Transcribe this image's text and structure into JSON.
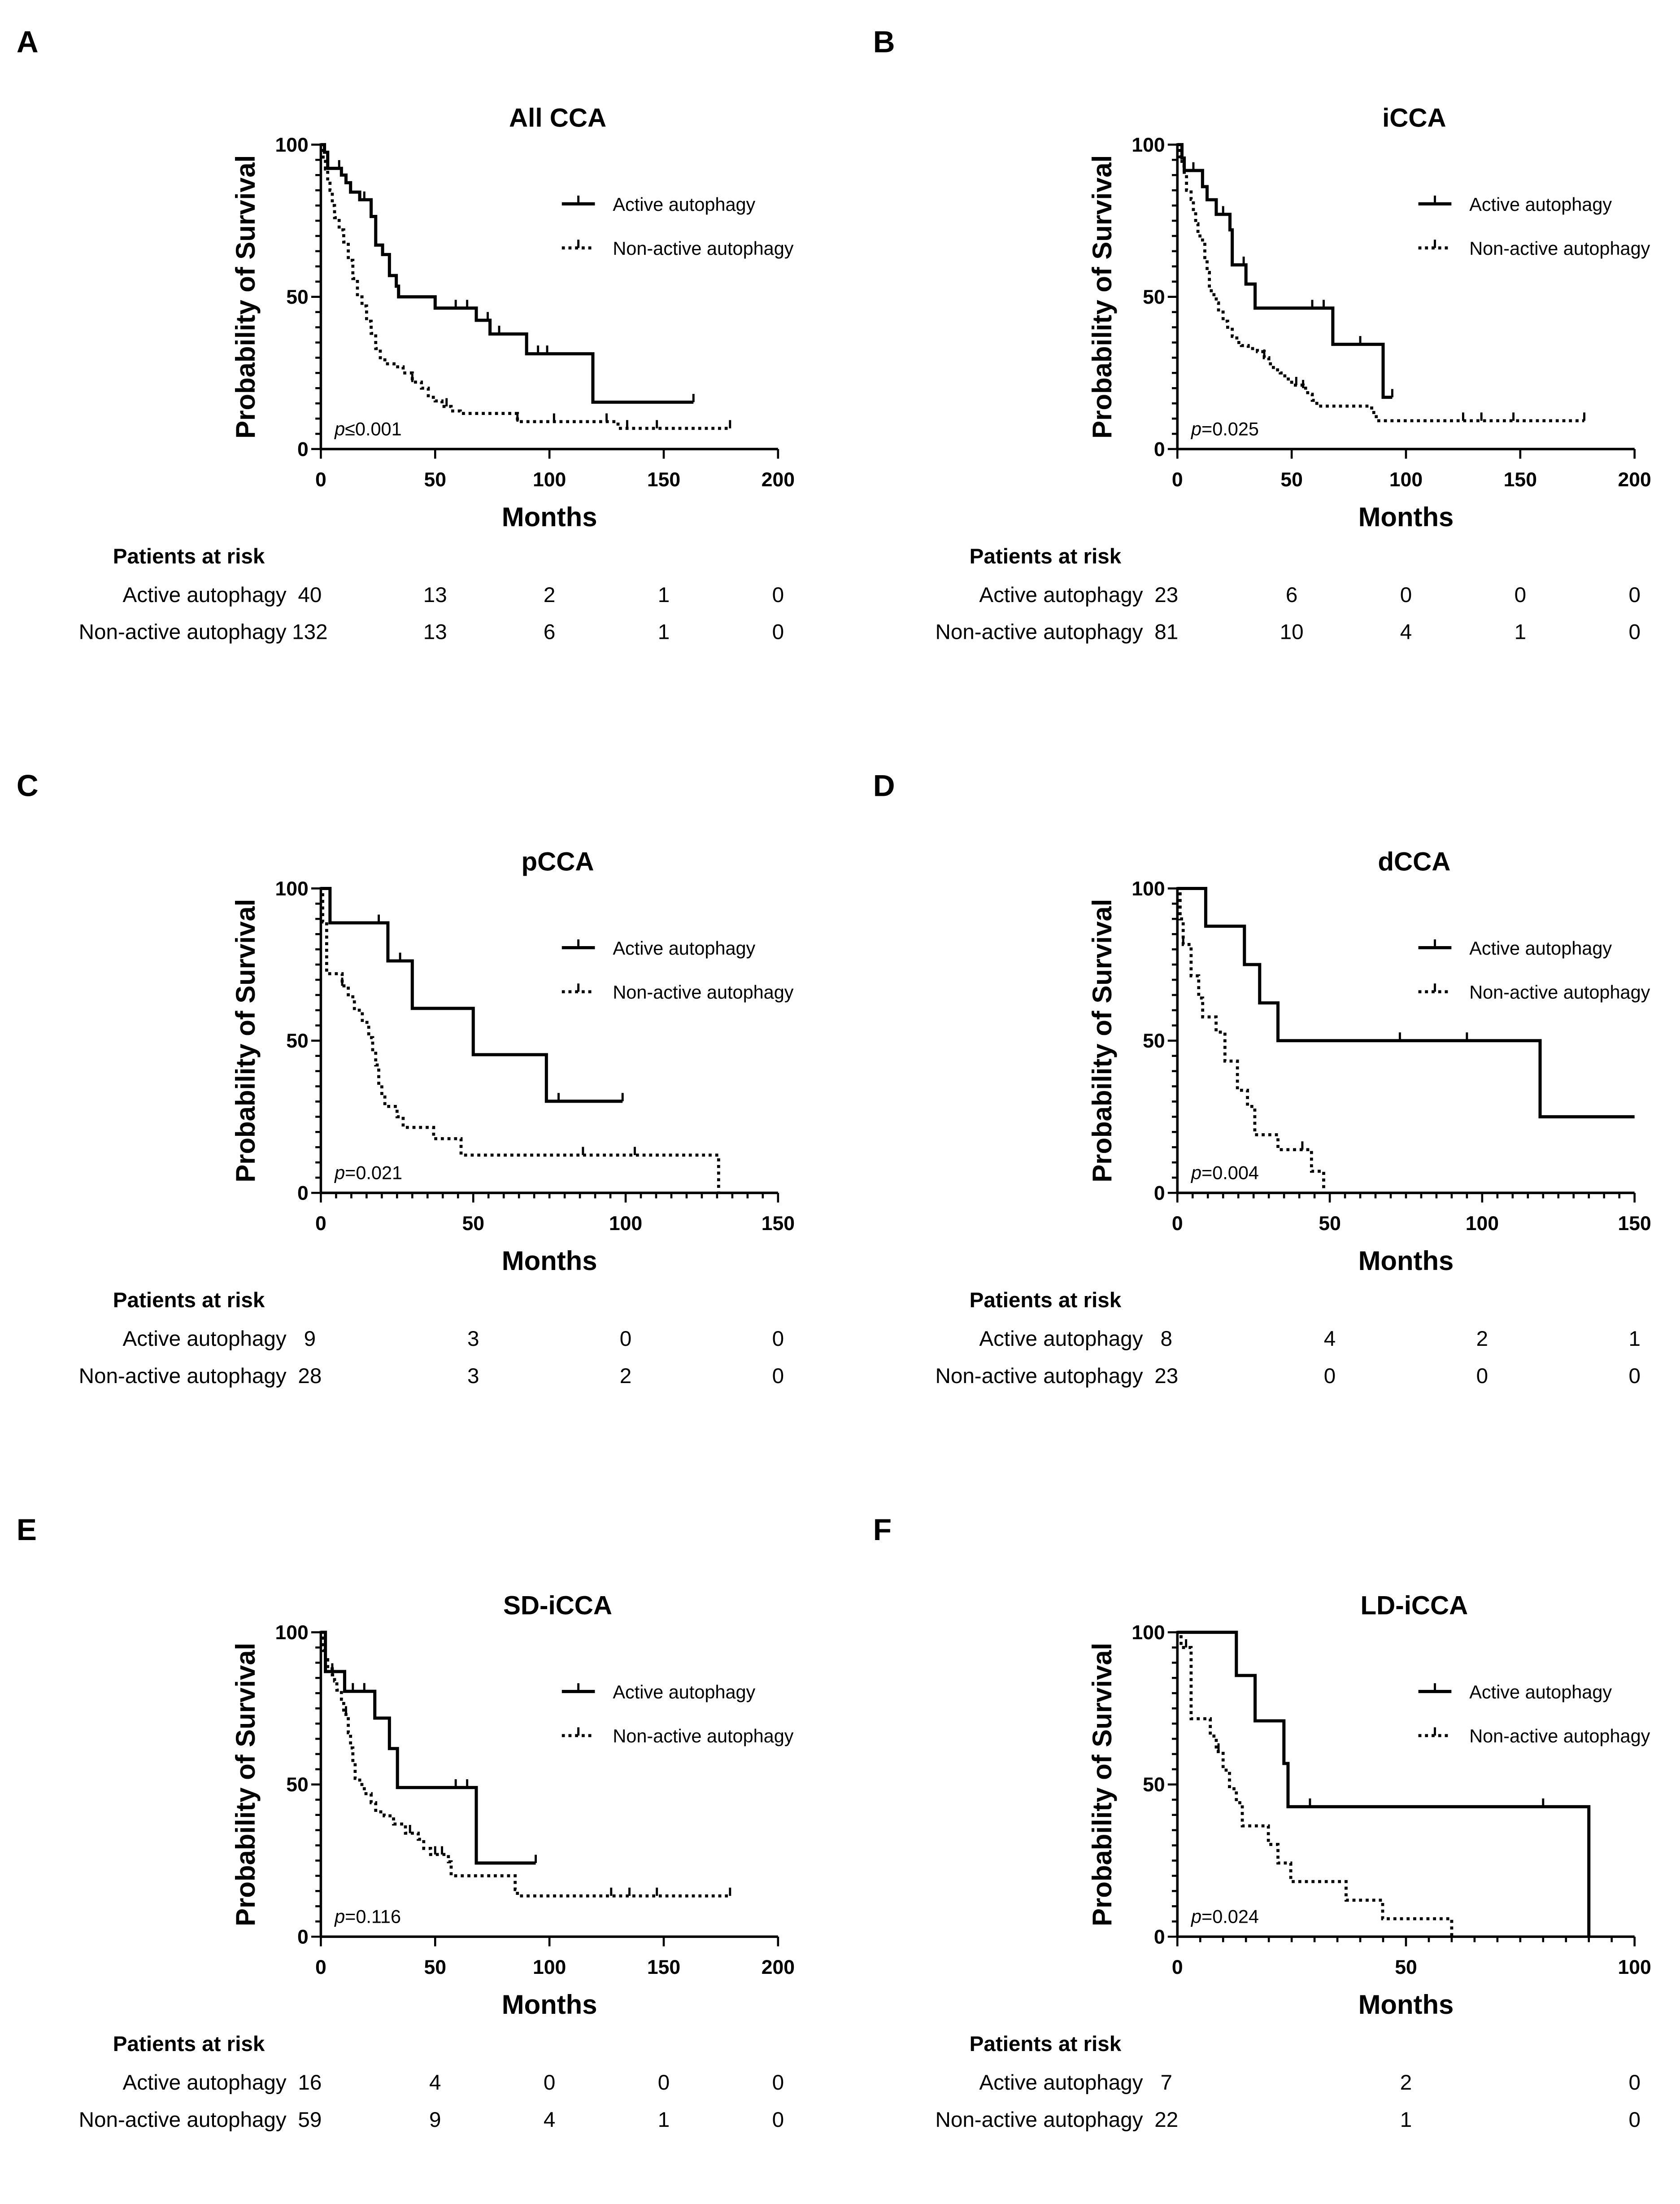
{
  "y_label": "Probability of Survival",
  "x_label": "Months",
  "risk_header": "Patients at risk",
  "legend": {
    "active": "Active autophagy",
    "nonactive": "Non-active autophagy"
  },
  "colors": {
    "line": "#000000"
  },
  "chart_data": [
    {
      "letter": "A",
      "title": "All CCA",
      "type": "line",
      "p_prefix": "p",
      "p_text": "≤0.001",
      "xlim": [
        0,
        200
      ],
      "xticks": [
        0,
        50,
        100,
        150,
        200
      ],
      "x_minor": 0,
      "ylim": [
        0,
        100
      ],
      "yticks": [
        0,
        50,
        100
      ],
      "series": [
        {
          "name": "Active autophagy",
          "style": "solid",
          "steps": [
            [
              1.6,
              97.5
            ],
            [
              3,
              92.2
            ],
            [
              9,
              90
            ],
            [
              11,
              87.5
            ],
            [
              13,
              84.4
            ],
            [
              17,
              81.9
            ],
            [
              22,
              76.4
            ],
            [
              24,
              67
            ],
            [
              27,
              63.9
            ],
            [
              30,
              57
            ],
            [
              33,
              53.5
            ],
            [
              34,
              50
            ],
            [
              50,
              46.3
            ],
            [
              68,
              42.3
            ],
            [
              74,
              37.8
            ],
            [
              90,
              31.3
            ],
            [
              119,
              15.4
            ]
          ],
          "end": 163,
          "censored": [
            8,
            19,
            59,
            64,
            73,
            78,
            95,
            99,
            163
          ]
        },
        {
          "name": "Non-active autophagy",
          "style": "dotted",
          "steps": [
            [
              1,
              95
            ],
            [
              2,
              92
            ],
            [
              3,
              88
            ],
            [
              4,
              85
            ],
            [
              5,
              80
            ],
            [
              6,
              76
            ],
            [
              8,
              72
            ],
            [
              10,
              68
            ],
            [
              12,
              62
            ],
            [
              14,
              56
            ],
            [
              16,
              50
            ],
            [
              18,
              47
            ],
            [
              20,
              42
            ],
            [
              22,
              38
            ],
            [
              24,
              33
            ],
            [
              26,
              30
            ],
            [
              28,
              28
            ],
            [
              32,
              27
            ],
            [
              36,
              25
            ],
            [
              40,
              22
            ],
            [
              44,
              20
            ],
            [
              47,
              17
            ],
            [
              50,
              15.8
            ],
            [
              53,
              14
            ],
            [
              57,
              12.5
            ],
            [
              61,
              11.7
            ],
            [
              86,
              9
            ],
            [
              130,
              6.8
            ]
          ],
          "end": 179,
          "censored": [
            40,
            55,
            86,
            102,
            125,
            134,
            147,
            179
          ]
        }
      ],
      "at_risk": {
        "times": [
          0,
          50,
          100,
          150,
          200
        ],
        "active": [
          40,
          13,
          2,
          1,
          0
        ],
        "nonactive": [
          132,
          13,
          6,
          1,
          0
        ]
      }
    },
    {
      "letter": "B",
      "title": "iCCA",
      "type": "line",
      "p_prefix": "p",
      "p_text": "=0.025",
      "xlim": [
        0,
        200
      ],
      "xticks": [
        0,
        50,
        100,
        150,
        200
      ],
      "x_minor": 0,
      "ylim": [
        0,
        100
      ],
      "yticks": [
        0,
        50,
        100
      ],
      "series": [
        {
          "name": "Active autophagy",
          "style": "solid",
          "steps": [
            [
              2,
              95.6
            ],
            [
              3,
              91.5
            ],
            [
              11,
              86.2
            ],
            [
              13,
              81.9
            ],
            [
              17,
              77.1
            ],
            [
              23,
              72
            ],
            [
              24,
              60.5
            ],
            [
              30,
              54.2
            ],
            [
              34,
              46.3
            ],
            [
              68,
              34.4
            ],
            [
              90,
              17
            ]
          ],
          "end": 94,
          "censored": [
            7,
            20,
            29,
            59,
            64,
            80,
            94
          ]
        },
        {
          "name": "Non-active autophagy",
          "style": "dotted",
          "steps": [
            [
              1,
              96
            ],
            [
              2,
              93
            ],
            [
              3,
              90
            ],
            [
              4,
              85
            ],
            [
              6,
              82
            ],
            [
              7,
              78
            ],
            [
              8,
              74
            ],
            [
              9,
              70
            ],
            [
              11,
              68
            ],
            [
              12,
              62
            ],
            [
              13,
              58
            ],
            [
              14,
              52
            ],
            [
              16,
              50
            ],
            [
              17,
              48
            ],
            [
              18,
              45
            ],
            [
              20,
              42
            ],
            [
              22,
              40
            ],
            [
              24,
              37
            ],
            [
              26,
              35
            ],
            [
              28,
              34
            ],
            [
              31,
              33
            ],
            [
              35,
              32
            ],
            [
              38,
              30
            ],
            [
              40,
              28
            ],
            [
              42,
              26
            ],
            [
              45,
              25
            ],
            [
              47,
              23
            ],
            [
              50,
              21
            ],
            [
              55,
              20
            ],
            [
              57,
              18
            ],
            [
              59,
              16
            ],
            [
              61,
              14.1
            ],
            [
              85,
              12
            ],
            [
              87,
              9.3
            ]
          ],
          "end": 178,
          "censored": [
            38,
            52,
            55,
            125,
            133,
            147,
            178
          ]
        }
      ],
      "at_risk": {
        "times": [
          0,
          50,
          100,
          150,
          200
        ],
        "active": [
          23,
          6,
          0,
          0,
          0
        ],
        "nonactive": [
          81,
          10,
          4,
          1,
          0
        ]
      }
    },
    {
      "letter": "C",
      "title": "pCCA",
      "type": "line",
      "p_prefix": "p",
      "p_text": "=0.021",
      "xlim": [
        0,
        150
      ],
      "xticks": [
        0,
        50,
        100,
        150
      ],
      "x_minor": 5,
      "ylim": [
        0,
        100
      ],
      "yticks": [
        0,
        50,
        100
      ],
      "series": [
        {
          "name": "Active autophagy",
          "style": "solid",
          "steps": [
            [
              3,
              88.7
            ],
            [
              22,
              76.2
            ],
            [
              30,
              60.6
            ],
            [
              50,
              45.4
            ],
            [
              74,
              30.1
            ]
          ],
          "end": 99,
          "censored": [
            19,
            26,
            78,
            99
          ]
        },
        {
          "name": "Non-active autophagy",
          "style": "dotted",
          "steps": [
            [
              0.6,
              89
            ],
            [
              1.9,
              72
            ],
            [
              7,
              68
            ],
            [
              9,
              64.4
            ],
            [
              11,
              60
            ],
            [
              13.6,
              56
            ],
            [
              15.7,
              51
            ],
            [
              17,
              46.4
            ],
            [
              18,
              42
            ],
            [
              19,
              36
            ],
            [
              20,
              32
            ],
            [
              21,
              28.4
            ],
            [
              25,
              25
            ],
            [
              27,
              21.5
            ],
            [
              37,
              17.8
            ],
            [
              46,
              12.4
            ],
            [
              130.5,
              0
            ]
          ],
          "end": 130.5,
          "censored": [
            7,
            86,
            103
          ]
        }
      ],
      "at_risk": {
        "times": [
          0,
          50,
          100,
          150
        ],
        "active": [
          9,
          3,
          0,
          0
        ],
        "nonactive": [
          28,
          3,
          2,
          0
        ]
      }
    },
    {
      "letter": "D",
      "title": "dCCA",
      "type": "line",
      "p_prefix": "p",
      "p_text": "=0.004",
      "xlim": [
        0,
        150
      ],
      "xticks": [
        0,
        50,
        100,
        150
      ],
      "x_minor": 5,
      "ylim": [
        0,
        100
      ],
      "yticks": [
        0,
        50,
        100
      ],
      "series": [
        {
          "name": "Active autophagy",
          "style": "solid",
          "steps": [
            [
              9.3,
              87.6
            ],
            [
              22,
              75
            ],
            [
              27,
              62.4
            ],
            [
              33,
              50
            ],
            [
              119,
              25
            ]
          ],
          "end": 150,
          "censored": [
            73,
            95
          ]
        },
        {
          "name": "Non-active autophagy",
          "style": "dotted",
          "steps": [
            [
              0.9,
              90
            ],
            [
              1.9,
              81.6
            ],
            [
              4.5,
              71.3
            ],
            [
              7,
              64
            ],
            [
              8.3,
              57.8
            ],
            [
              12.7,
              52.8
            ],
            [
              15.6,
              43.3
            ],
            [
              19.7,
              33.7
            ],
            [
              23,
              28.4
            ],
            [
              25.4,
              19.1
            ],
            [
              33,
              14.2
            ],
            [
              44,
              7.1
            ],
            [
              48,
              0
            ]
          ],
          "end": 48,
          "censored": [
            1.9,
            41
          ]
        }
      ],
      "at_risk": {
        "times": [
          0,
          50,
          100,
          150
        ],
        "active": [
          8,
          4,
          2,
          1
        ],
        "nonactive": [
          23,
          0,
          0,
          0
        ]
      }
    },
    {
      "letter": "E",
      "title": "SD-iCCA",
      "type": "line",
      "p_prefix": "p",
      "p_text": "=0.116",
      "xlim": [
        0,
        200
      ],
      "xticks": [
        0,
        50,
        100,
        150,
        200
      ],
      "x_minor": 0,
      "ylim": [
        0,
        100
      ],
      "yticks": [
        0,
        50,
        100
      ],
      "series": [
        {
          "name": "Active autophagy",
          "style": "solid",
          "steps": [
            [
              2,
              87.1
            ],
            [
              10.4,
              80.6
            ],
            [
              23.6,
              71.8
            ],
            [
              30,
              61.8
            ],
            [
              33.5,
              49
            ],
            [
              68,
              24.2
            ]
          ],
          "end": 94,
          "censored": [
            5,
            14,
            19,
            30,
            59,
            64,
            94
          ]
        },
        {
          "name": "Non-active autophagy",
          "style": "dotted",
          "steps": [
            [
              1,
              94
            ],
            [
              2,
              91
            ],
            [
              3,
              88
            ],
            [
              5,
              86
            ],
            [
              6,
              84
            ],
            [
              7,
              81
            ],
            [
              9,
              78
            ],
            [
              10,
              73
            ],
            [
              12,
              67
            ],
            [
              13,
              62
            ],
            [
              14,
              57
            ],
            [
              15,
              52
            ],
            [
              17,
              50
            ],
            [
              19,
              47
            ],
            [
              22,
              44
            ],
            [
              24,
              41
            ],
            [
              27.7,
              39.7
            ],
            [
              31.8,
              37
            ],
            [
              37,
              34
            ],
            [
              42.6,
              32
            ],
            [
              45,
              29
            ],
            [
              48,
              27
            ],
            [
              55.8,
              24.6
            ],
            [
              57,
              20
            ],
            [
              85,
              15.5
            ],
            [
              86,
              13.4
            ]
          ],
          "end": 179,
          "censored": [
            5,
            11,
            39,
            50,
            53,
            127,
            135,
            147,
            179
          ]
        }
      ],
      "at_risk": {
        "times": [
          0,
          50,
          100,
          150,
          200
        ],
        "active": [
          16,
          4,
          0,
          0,
          0
        ],
        "nonactive": [
          59,
          9,
          4,
          1,
          0
        ]
      }
    },
    {
      "letter": "F",
      "title": "LD-iCCA",
      "type": "line",
      "p_prefix": "p",
      "p_text": "=0.024",
      "xlim": [
        0,
        100
      ],
      "xticks": [
        0,
        50,
        100
      ],
      "x_minor": 5,
      "ylim": [
        0,
        100
      ],
      "yticks": [
        0,
        50,
        100
      ],
      "series": [
        {
          "name": "Active autophagy",
          "style": "solid",
          "steps": [
            [
              12.9,
              85.8
            ],
            [
              17,
              70.9
            ],
            [
              23.3,
              56.9
            ],
            [
              24.2,
              42.7
            ],
            [
              90,
              0
            ]
          ],
          "end": 90,
          "censored": [
            29,
            80
          ]
        },
        {
          "name": "Non-active autophagy",
          "style": "dotted",
          "steps": [
            [
              0.8,
              95
            ],
            [
              3,
              71.6
            ],
            [
              7.2,
              65.9
            ],
            [
              8.5,
              60.8
            ],
            [
              10,
              54.7
            ],
            [
              11.4,
              48.6
            ],
            [
              12.9,
              44
            ],
            [
              14.2,
              36.4
            ],
            [
              19.9,
              30.3
            ],
            [
              22,
              24.2
            ],
            [
              24.8,
              18.1
            ],
            [
              36.9,
              12
            ],
            [
              44.9,
              5.9
            ],
            [
              60,
              0
            ]
          ],
          "end": 60,
          "censored": [
            1.9,
            9
          ]
        }
      ],
      "at_risk": {
        "times": [
          0,
          50,
          100
        ],
        "active": [
          7,
          2,
          0
        ],
        "nonactive": [
          22,
          1,
          0
        ]
      }
    }
  ]
}
